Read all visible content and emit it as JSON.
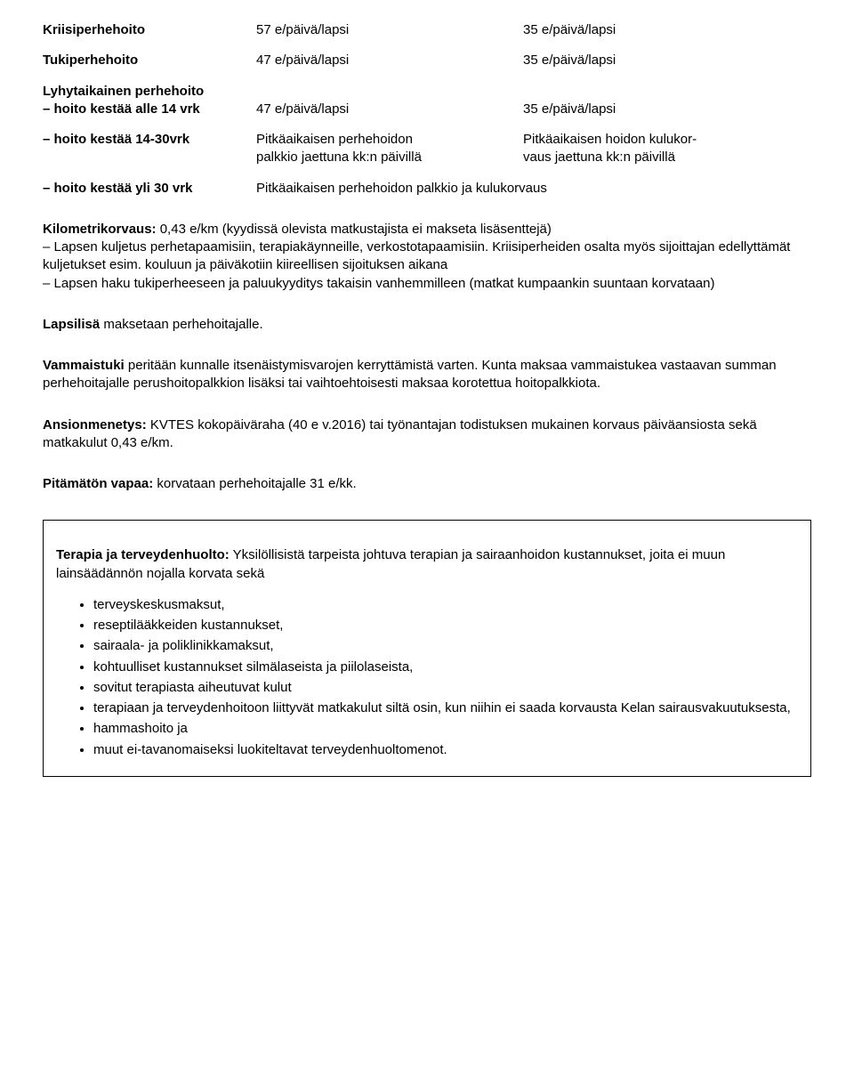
{
  "rates": {
    "kriisi": {
      "label": "Kriisiperhehoito",
      "c2": "57 e/päivä/lapsi",
      "c3": "35 e/päivä/lapsi"
    },
    "tuki": {
      "label": "Tukiperhehoito",
      "c2": "47 e/päivä/lapsi",
      "c3": "35 e/päivä/lapsi"
    },
    "lyhyt_h1": "Lyhytaikainen perhehoito",
    "lyhyt_r1": {
      "label": "– hoito kestää alle 14 vrk",
      "c2": "47 e/päivä/lapsi",
      "c3": "35 e/päivä/lapsi"
    },
    "lyhyt_r2": {
      "label": "– hoito kestää 14-30vrk",
      "c2a": "Pitkäaikaisen perhehoidon",
      "c2b": "palkkio jaettuna kk:n päivillä",
      "c3a": "Pitkäaikaisen hoidon kulukor-",
      "c3b": "vaus jaettuna kk:n päivillä"
    },
    "lyhyt_r3": {
      "label": "– hoito kestää yli 30 vrk",
      "c2": "Pitkäaikaisen perhehoidon palkkio ja kulukorvaus"
    }
  },
  "km": {
    "label": "Kilometrikorvaus:",
    "text1": " 0,43 e/km (kyydissä olevista matkustajista ei makseta lisäsenttejä)",
    "text2": "– Lapsen kuljetus perhetapaamisiin, terapiakäynneille, verkostotapaamisiin. Kriisiperheiden osalta myös sijoittajan edellyttämät kuljetukset esim. kouluun ja päiväkotiin kiireellisen sijoituksen aikana",
    "text3": "– Lapsen haku tukiperheeseen ja paluukyyditys takaisin vanhemmilleen (matkat kumpaankin suuntaan korvataan)"
  },
  "lapsilisa": {
    "label": "Lapsilisä",
    "text": " maksetaan perhehoitajalle."
  },
  "vammaistuki": {
    "label": "Vammaistuki",
    "text": " peritään kunnalle itsenäistymisvarojen kerryttämistä varten. Kunta maksaa vammaistukea vastaavan summan perhehoitajalle perushoitopalkkion lisäksi tai vaihtoehtoisesti maksaa korotettua hoitopalkkiota."
  },
  "ansiomenetys": {
    "label": "Ansionmenetys:",
    "text": " KVTES kokopäiväraha (40 e v.2016) tai työnantajan todistuksen mukainen korvaus päiväansiosta sekä matkakulut 0,43 e/km."
  },
  "pitamaton": {
    "label": "Pitämätön vapaa:",
    "text": " korvataan perhehoitajalle 31 e/kk."
  },
  "terapia": {
    "label": "Terapia ja terveydenhuolto:",
    "intro": " Yksilöllisistä tarpeista johtuva terapian ja sairaanhoidon kustannukset, joita ei muun lainsäädännön nojalla korvata sekä",
    "items": [
      "terveyskeskusmaksut,",
      "reseptilääkkeiden kustannukset,",
      "sairaala- ja poliklinikkamaksut,",
      "kohtuulliset kustannukset silmälaseista ja piilolaseista,",
      "sovitut terapiasta aiheutuvat kulut",
      "terapiaan ja terveydenhoitoon liittyvät matkakulut siltä osin, kun niihin ei saada korvausta Kelan sairausvakuutuksesta,",
      "hammashoito ja",
      "muut ei-tavanomaiseksi luokiteltavat terveydenhuoltomenot."
    ]
  }
}
